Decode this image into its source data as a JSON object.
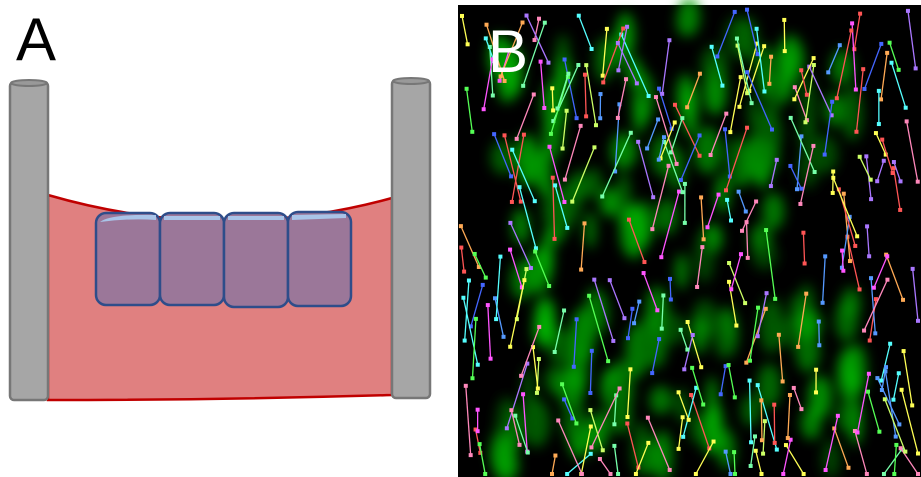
{
  "panels": [
    {
      "label": "A"
    },
    {
      "label": "B"
    }
  ]
}
